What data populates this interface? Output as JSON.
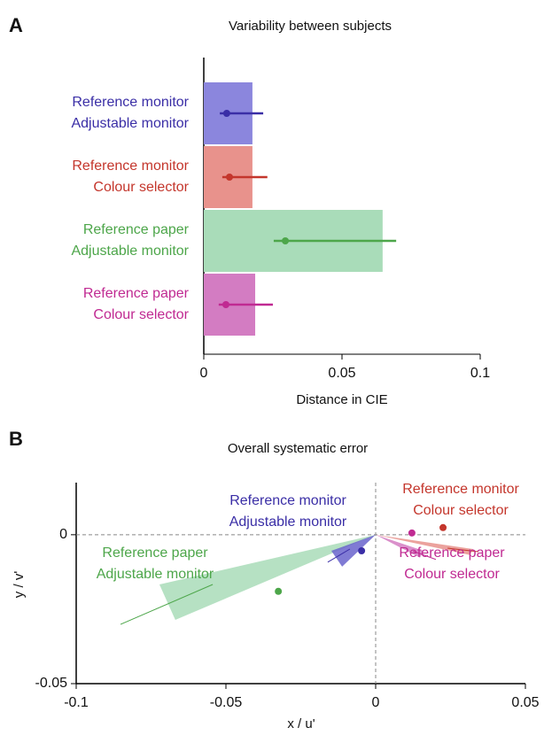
{
  "chart_data": [
    {
      "type": "hbar",
      "panel": "A",
      "title": "Variability between subjects",
      "xlabel": "Distance in CIE",
      "categories": [
        [
          "Reference monitor",
          "Adjustable monitor"
        ],
        [
          "Reference monitor",
          "Colour selector"
        ],
        [
          "Reference paper",
          "Adjustable monitor"
        ],
        [
          "Reference paper",
          "Colour selector"
        ]
      ],
      "text_colors": [
        "#3a2ea6",
        "#c4362c",
        "#4da64a",
        "#c02a92"
      ],
      "colors": [
        "#8b86dd",
        "#e8928c",
        "#a9dcb9",
        "#d37cc2"
      ],
      "point_colors": [
        "#3a2ea6",
        "#c4362c",
        "#4da64a",
        "#c02a92"
      ],
      "values": [
        0.0176,
        0.0176,
        0.0647,
        0.0186
      ],
      "points": [
        0.0083,
        0.0093,
        0.0295,
        0.008
      ],
      "errors": [
        [
          0.0058,
          0.0215
        ],
        [
          0.0067,
          0.023
        ],
        [
          0.0253,
          0.0696
        ],
        [
          0.0054,
          0.025
        ]
      ],
      "xlim": [
        0,
        0.1
      ],
      "xticks": [
        0,
        0.05,
        0.1
      ]
    },
    {
      "type": "vector",
      "panel": "B",
      "title": "Overall systematic error",
      "xlabel": "x / u'",
      "ylabel": "y / v'",
      "xlim": [
        -0.1,
        0.05
      ],
      "ylim": [
        -0.05,
        0.0175
      ],
      "xticks": [
        -0.1,
        -0.05,
        0,
        0.05
      ],
      "yticks": [
        0,
        -0.05
      ],
      "series": [
        {
          "label_lines": [
            "Reference paper",
            "Adjustable monitor"
          ],
          "color": "#4da64a",
          "fill": "#a9dcb9",
          "point": [
            -0.0325,
            -0.019
          ],
          "wedge": [
            [
              -0.0722,
              -0.0167
            ],
            [
              -0.0669,
              -0.0286
            ]
          ],
          "line": [
            [
              -0.0852,
              -0.0301
            ],
            [
              -0.0544,
              -0.0167
            ]
          ]
        },
        {
          "label_lines": [
            "Reference monitor",
            "Adjustable monitor"
          ],
          "color": "#3a2ea6",
          "fill": "#6a64cc",
          "point": [
            -0.0047,
            -0.0054
          ],
          "wedge": [
            [
              -0.0148,
              -0.0054
            ],
            [
              -0.0112,
              -0.0107
            ]
          ],
          "line": [
            [
              -0.016,
              -0.0092
            ],
            [
              -0.0086,
              -0.0048
            ]
          ]
        },
        {
          "label_lines": [
            "Reference monitor",
            "Colour selector"
          ],
          "color": "#c4362c",
          "fill": "#e8928c",
          "point": [
            0.0225,
            0.0024
          ],
          "wedge": [
            [
              0.0325,
              -0.0048
            ],
            [
              0.0315,
              -0.0068
            ]
          ],
          "line": [
            [
              0.024,
              -0.0045
            ],
            [
              0.0343,
              -0.0057
            ]
          ]
        },
        {
          "label_lines": [
            "Reference paper",
            "Colour selector"
          ],
          "color": "#c02a92",
          "fill": "#d37cc2",
          "point": [
            0.0121,
            0.0006
          ],
          "wedge": [
            [
              0.016,
              -0.0054
            ],
            [
              0.0148,
              -0.0077
            ]
          ],
          "line": [
            [
              0.0125,
              -0.0055
            ],
            [
              0.0201,
              -0.0083
            ]
          ]
        }
      ]
    }
  ]
}
